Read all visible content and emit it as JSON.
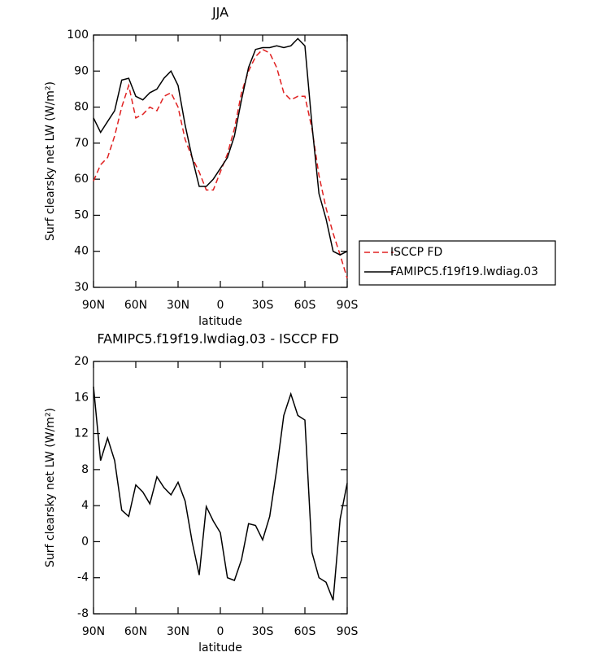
{
  "chart_data": [
    {
      "type": "line",
      "title": "JJA",
      "xlabel": "latitude",
      "ylabel": "Surf clearsky net LW (W/m²)",
      "x": [
        90,
        85,
        80,
        75,
        70,
        65,
        60,
        55,
        50,
        45,
        40,
        35,
        30,
        25,
        20,
        15,
        10,
        5,
        0,
        -5,
        -10,
        -15,
        -20,
        -25,
        -30,
        -35,
        -40,
        -45,
        -50,
        -55,
        -60,
        -65,
        -70,
        -75,
        -80,
        -85,
        -90
      ],
      "series": [
        {
          "name": "ISCCP FD",
          "color": "#e02020",
          "linestyle": "dashed",
          "values": [
            59.5,
            64,
            66,
            72,
            80,
            86,
            77,
            78,
            80,
            79,
            83,
            84,
            80,
            71,
            66,
            62,
            57,
            57,
            62,
            67,
            74,
            84,
            90,
            94,
            96,
            95,
            91,
            84,
            82,
            83,
            83,
            74,
            61,
            52,
            45,
            39,
            32.5
          ]
        },
        {
          "name": "FAMIPC5.f19f19.lwdiag.03",
          "color": "#000000",
          "linestyle": "solid",
          "values": [
            77,
            73,
            76,
            79,
            87.5,
            88,
            83,
            82,
            84,
            85,
            88,
            90,
            86,
            75,
            66,
            58,
            58,
            60,
            63,
            66,
            72,
            82,
            91,
            96,
            96.5,
            96.5,
            97,
            96.5,
            97,
            99,
            97,
            75,
            56,
            49,
            40,
            39,
            40
          ]
        }
      ],
      "xlim": [
        90,
        -90
      ],
      "xticks": [
        {
          "value": 90,
          "label": "90N"
        },
        {
          "value": 60,
          "label": "60N"
        },
        {
          "value": 30,
          "label": "30N"
        },
        0,
        {
          "value": -30,
          "label": "30S"
        },
        {
          "value": -60,
          "label": "60S"
        },
        {
          "value": -90,
          "label": "90S"
        }
      ],
      "ylim": [
        30,
        100
      ],
      "yticks": [
        30,
        40,
        50,
        60,
        70,
        80,
        90,
        100
      ],
      "legend": "right"
    },
    {
      "type": "line",
      "title": "FAMIPC5.f19f19.lwdiag.03 - ISCCP FD",
      "xlabel": "latitude",
      "ylabel": "Surf clearsky net LW (W/m²)",
      "x": [
        90,
        85,
        80,
        75,
        70,
        65,
        60,
        55,
        50,
        45,
        40,
        35,
        30,
        25,
        20,
        15,
        10,
        5,
        0,
        -5,
        -10,
        -15,
        -20,
        -25,
        -30,
        -35,
        -40,
        -45,
        -50,
        -55,
        -60,
        -65,
        -70,
        -75,
        -80,
        -85,
        -90
      ],
      "series": [
        {
          "name": "FAMIPC5.f19f19.lwdiag.03 - ISCCP FD",
          "color": "#000000",
          "linestyle": "solid",
          "values": [
            17.2,
            9,
            11.5,
            9,
            3.5,
            2.8,
            6.3,
            5.5,
            4.2,
            7.2,
            6,
            5.2,
            6.6,
            4.5,
            0,
            -3.7,
            3.9,
            2.3,
            1,
            -4,
            -4.3,
            -2,
            2,
            1.8,
            0.2,
            2.8,
            8,
            14,
            16.4,
            14,
            13.5,
            -1.2,
            -4,
            -4.5,
            -6.5,
            2.5,
            6.5
          ]
        }
      ],
      "xlim": [
        90,
        -90
      ],
      "xticks": [
        {
          "value": 90,
          "label": "90N"
        },
        {
          "value": 60,
          "label": "60N"
        },
        {
          "value": 30,
          "label": "30N"
        },
        0,
        {
          "value": -30,
          "label": "30S"
        },
        {
          "value": -60,
          "label": "60S"
        },
        {
          "value": -90,
          "label": "90S"
        }
      ],
      "ylim": [
        -8,
        20
      ],
      "yticks": [
        -8,
        -4,
        0,
        4,
        8,
        12,
        16,
        20
      ]
    }
  ]
}
